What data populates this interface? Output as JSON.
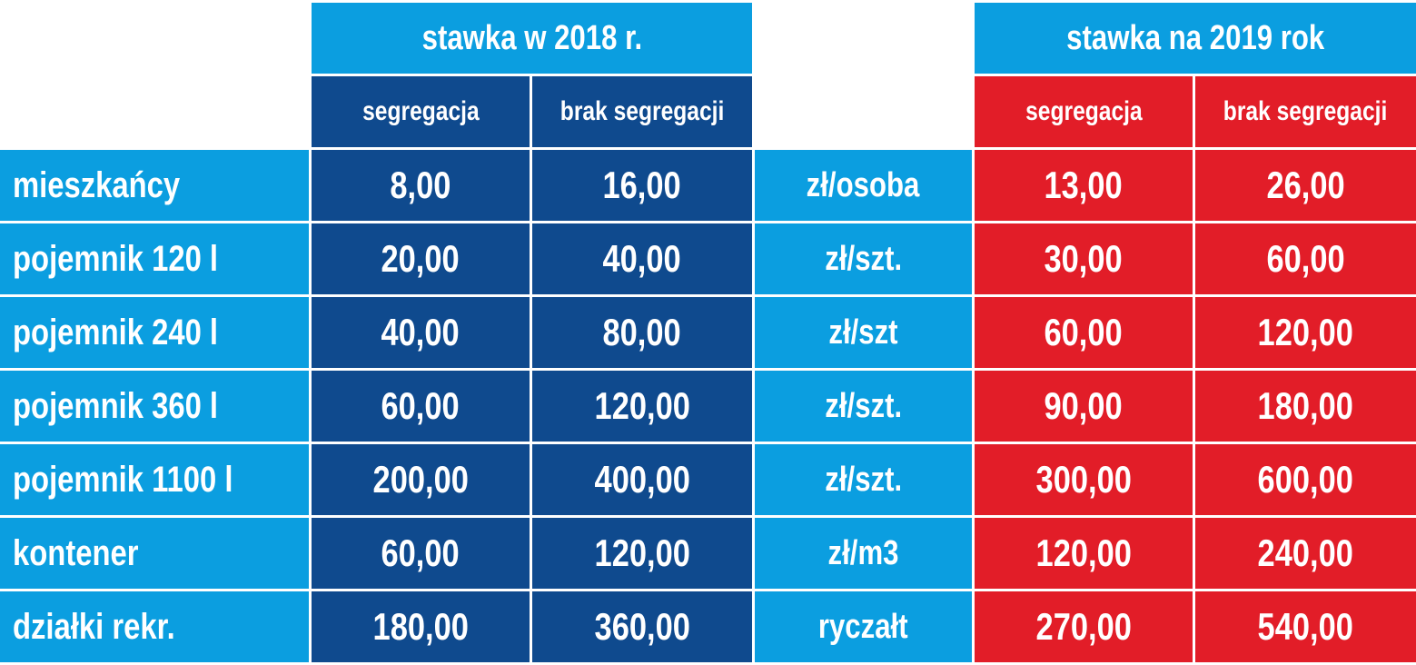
{
  "header": {
    "group_2018": "stawka w 2018 r.",
    "group_2019": "stawka na 2019 rok",
    "sub_2018": {
      "seg": "segregacja",
      "noseg": "brak segregacji"
    },
    "sub_2019": {
      "seg": "segregacja",
      "noseg": "brak segregacji"
    }
  },
  "colors": {
    "cyan": "#0b9ee0",
    "navy": "#0f4a8e",
    "red": "#e21d28",
    "text": "#ffffff"
  },
  "rows": [
    {
      "label": "mieszkańcy",
      "seg2018": "8,00",
      "noseg2018": "16,00",
      "unit": "zł/osoba",
      "seg2019": "13,00",
      "noseg2019": "26,00"
    },
    {
      "label": "pojemnik 120 l",
      "seg2018": "20,00",
      "noseg2018": "40,00",
      "unit": "zł/szt.",
      "seg2019": "30,00",
      "noseg2019": "60,00"
    },
    {
      "label": "pojemnik 240 l",
      "seg2018": "40,00",
      "noseg2018": "80,00",
      "unit": "zł/szt",
      "seg2019": "60,00",
      "noseg2019": "120,00"
    },
    {
      "label": "pojemnik 360 l",
      "seg2018": "60,00",
      "noseg2018": "120,00",
      "unit": "zł/szt.",
      "seg2019": "90,00",
      "noseg2019": "180,00"
    },
    {
      "label": "pojemnik 1100 l",
      "seg2018": "200,00",
      "noseg2018": "400,00",
      "unit": "zł/szt.",
      "seg2019": "300,00",
      "noseg2019": "600,00"
    },
    {
      "label": "kontener",
      "seg2018": "60,00",
      "noseg2018": "120,00",
      "unit": "zł/m3",
      "seg2019": "120,00",
      "noseg2019": "240,00"
    },
    {
      "label": "działki rekr.",
      "seg2018": "180,00",
      "noseg2018": "360,00",
      "unit": "ryczałt",
      "seg2019": "270,00",
      "noseg2019": "540,00"
    }
  ]
}
